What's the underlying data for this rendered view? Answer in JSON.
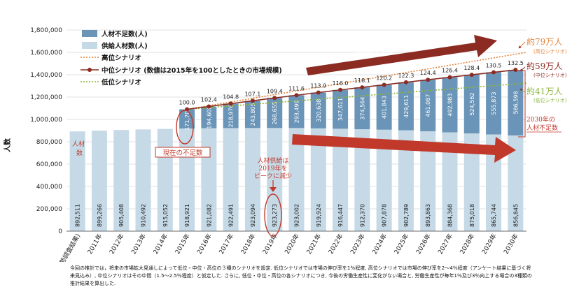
{
  "chart_data": {
    "type": "bar",
    "ylabel": "人数",
    "ylim": [
      0,
      1800000
    ],
    "y_ticks": [
      "0",
      "200,000",
      "400,000",
      "600,000",
      "800,000",
      "1,000,000",
      "1,200,000",
      "1,400,000",
      "1,600,000",
      "1,800,000"
    ],
    "y_tick_values": [
      0,
      200000,
      400000,
      600000,
      800000,
      1000000,
      1200000,
      1400000,
      1600000,
      1800000
    ],
    "categories": [
      "2010年(国勢調査結果)",
      "2011年",
      "2012年",
      "2013年",
      "2014年",
      "2015年",
      "2016年",
      "2017年",
      "2018年",
      "2019年",
      "2020年",
      "2021年",
      "2022年",
      "2023年",
      "2024年",
      "2025年",
      "2026年",
      "2027年",
      "2028年",
      "2029年",
      "2030年"
    ],
    "supply_labels": [
      "892,511",
      "899,266",
      "905,408",
      "910,492",
      "915,052",
      "918,921",
      "921,082",
      "922,491",
      "923,094",
      "923,273",
      "923,002",
      "919,924",
      "916,447",
      "912,370",
      "907,878",
      "902,789",
      "893,863",
      "884,368",
      "875,018",
      "865,744",
      "856,845"
    ],
    "shortage_labels": [
      "",
      "",
      "",
      "",
      "",
      "171,700",
      "194,608",
      "218,976",
      "243,805",
      "268,655",
      "293,499",
      "320,638",
      "347,611",
      "374,564",
      "401,843",
      "429,611",
      "461,087",
      "492,983",
      "524,562",
      "555,873",
      "586,598"
    ],
    "index_labels": [
      "100.0",
      "102.4",
      "104.8",
      "107.1",
      "109.4",
      "111.6",
      "113.9",
      "116.0",
      "118.1",
      "120.2",
      "122.3",
      "124.4",
      "126.4",
      "128.4",
      "130.5",
      "132.5"
    ],
    "series": [
      {
        "name": "人材不足数(人)",
        "color": "#6b95b8",
        "values": [
          null,
          null,
          null,
          null,
          null,
          171700,
          194608,
          218976,
          243805,
          268655,
          293499,
          320638,
          347611,
          374564,
          401843,
          429611,
          461087,
          492983,
          524562,
          555873,
          586598
        ]
      },
      {
        "name": "供給人材数(人)",
        "color": "#c5d9e6",
        "values": [
          892511,
          899266,
          905408,
          910492,
          915052,
          918921,
          921082,
          922491,
          923094,
          923273,
          923002,
          919924,
          916447,
          912370,
          907878,
          902789,
          893863,
          884368,
          875018,
          865744,
          856845
        ]
      },
      {
        "name": "高位シナリオ",
        "color": "#e3843a",
        "start": 1090621,
        "end": 1600000
      },
      {
        "name": "中位シナリオ (数値は2015年を100としたときの市場規模)",
        "color": "#8b2b22",
        "values": [
          null,
          null,
          null,
          null,
          null,
          1090621,
          1115690,
          1141467,
          1166899,
          1191928,
          1216501,
          1240562,
          1264058,
          1286934,
          1309721,
          1332400,
          1354950,
          1377351,
          1399580,
          1421617,
          1443443
        ]
      },
      {
        "name": "低位シナリオ",
        "color": "#8bb43a",
        "start": 1090621,
        "end": 1325000
      }
    ],
    "legend_position": "top-left"
  },
  "annotations": {
    "it_needs": [
      "ITニーズの拡大により",
      "市場規模は今後も拡大"
    ],
    "high_label": "約79万人",
    "high_sub": "(高位シナリオ)",
    "mid_label": "約59万人",
    "mid_sub": "(中位シナリオ)",
    "low_label": "約41万人",
    "low_sub": "(低位シナリオ)",
    "shortage_2030": [
      "2030年の",
      "人材不足数"
    ],
    "shortage_now": "現在の不足数",
    "supply_left": [
      "人材",
      "数"
    ],
    "supply_peak": [
      "人材供給は",
      "2019年を",
      "ピークに減少"
    ]
  },
  "colors": {
    "shortage": "#6b95b8",
    "supply": "#c5d9e6",
    "mid": "#8b2b22",
    "high": "#e3843a",
    "low": "#8bb43a",
    "arrow_dark": "#8b2b22",
    "arrow_light": "#c0392b",
    "annot": "#c0392b"
  },
  "footnote": "今回の推計では，将来の市場拡大見通しによって低位・中位・高位の３種のシナリオを設定. 低位シナリオでは市場の伸び率を1％程度, 高位シナリオでは市場の伸び率を2～4％程度（アンケート結果に基づく将来見込み）, 中位シナリオはその中間（1.5～2.5％程度）と仮定した. さらに, 低位・中位・高位の各シナリオにつき, 今後の労働生産性に変化がない場合と, 労働生産性が毎年1％及び3％向上する場合の3種類の推計結果を算出した."
}
